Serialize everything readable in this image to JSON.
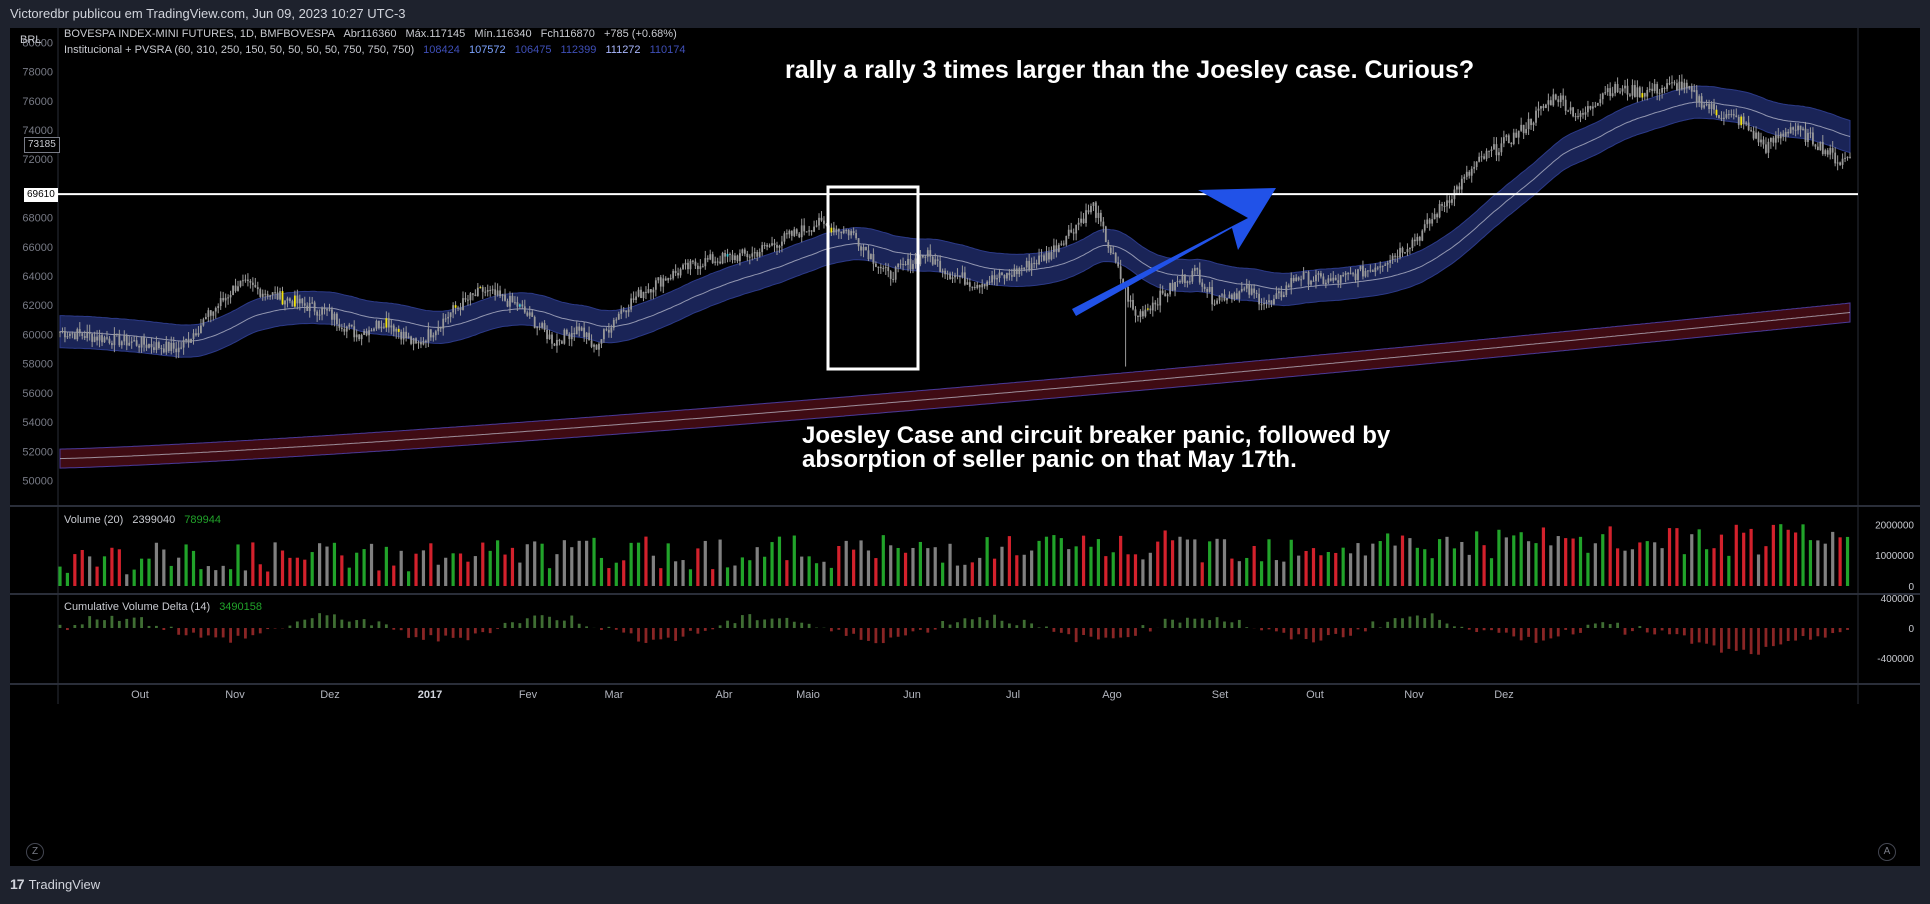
{
  "header": {
    "publisher": "Victoredbr publicou em TradingView.com, Jun 09, 2023 10:27 UTC-3"
  },
  "footer": {
    "brand": "TradingView",
    "brand_icon": "tradingview-logo-icon",
    "zoom_button": "Z",
    "auto_button": "A"
  },
  "colors": {
    "bull": "#21a32a",
    "bear": "#d3212c",
    "neutral_candle": "#9a9a9a",
    "climax": "#f5e50a",
    "cyan": "#2fc8d8",
    "band": "#1e2a66",
    "band_lower": "#4a0d16",
    "arrow": "#2152e8"
  },
  "chart_data": [
    {
      "pane": "price",
      "type": "candlestick",
      "currency": "BRL",
      "legend_line1": "BOVESPA INDEX-MINI FUTURES, 1D, BMFBOVESPA",
      "ohlc": {
        "open": "Abr116360",
        "high": "Máx.117145",
        "low": "Mín.116340",
        "close": "Fch116870",
        "change": "+785 (+0.68%)"
      },
      "legend_line2": "Institucional + PVSRA (60, 310, 250, 150, 50, 50, 50, 50, 750, 750, 750)",
      "indicator_values": [
        {
          "text": "108424",
          "color": "#3f4fb8"
        },
        {
          "text": "107572",
          "color": "#7da3ff"
        },
        {
          "text": "106475",
          "color": "#3f4fb8"
        },
        {
          "text": "112399",
          "color": "#3f4fb8"
        },
        {
          "text": "111272",
          "color": "#aab8ff"
        },
        {
          "text": "110174",
          "color": "#3f4fb8"
        }
      ],
      "ylim": [
        48800,
        80300
      ],
      "y_ticks": [
        50000,
        52000,
        54000,
        56000,
        58000,
        60000,
        62000,
        64000,
        66000,
        68000,
        72000,
        74000,
        76000,
        78000,
        80000
      ],
      "x_labels": [
        "Out",
        "Nov",
        "Dez",
        "2017",
        "Fev",
        "Mar",
        "Abr",
        "Maio",
        "Jun",
        "Jul",
        "Ago",
        "Set",
        "Out",
        "Nov",
        "Dez"
      ],
      "horizontal_line": {
        "value": 69610,
        "label": "69610"
      },
      "crosshair_label": "73185",
      "anchors_x": [
        0,
        48,
        72,
        108,
        120,
        132,
        144,
        160,
        171,
        185,
        200,
        210,
        216,
        226,
        236,
        246,
        260,
        280,
        306,
        320,
        335,
        350,
        360,
        370,
        383,
        400,
        418,
        435,
        454,
        460,
        466,
        480,
        490,
        500,
        515,
        530,
        540,
        550,
        560,
        575
      ],
      "anchors_close": [
        60200,
        59000,
        63500,
        61500,
        60000,
        61000,
        59200,
        61800,
        63000,
        62000,
        59500,
        60500,
        59000,
        61500,
        63000,
        64000,
        65000,
        65500,
        67600,
        67000,
        64000,
        65500,
        64200,
        63500,
        64000,
        65500,
        68800,
        61200,
        63800,
        64300,
        62500,
        63000,
        62000,
        64000,
        63600,
        64500,
        65500,
        66800,
        69000,
        72000
      ],
      "anchors_close_2": [
        73800,
        76400,
        74800,
        76800,
        76600,
        77100,
        75200,
        74600,
        72800,
        74200,
        73200,
        71800,
        72300
      ],
      "anchors_x_2": [
        590,
        605,
        615,
        625,
        640,
        655,
        670,
        680,
        690,
        700,
        710,
        720,
        724
      ],
      "annotations": [
        {
          "text": "rally a rally 3 times larger than the Joesley case. Curious?"
        },
        {
          "text": "Joesley Case and circuit breaker panic, followed by absorption of seller panic on that May 17th."
        }
      ]
    },
    {
      "pane": "volume",
      "type": "bar",
      "title": "Volume (20)",
      "values_text": [
        "2399040",
        "789944"
      ],
      "y_ticks": [
        0,
        1000000,
        2000000
      ]
    },
    {
      "pane": "cvd",
      "type": "bar",
      "title": "Cumulative Volume Delta (14)",
      "value_text": "3490158",
      "y_ticks": [
        -400000,
        0,
        400000
      ]
    }
  ]
}
